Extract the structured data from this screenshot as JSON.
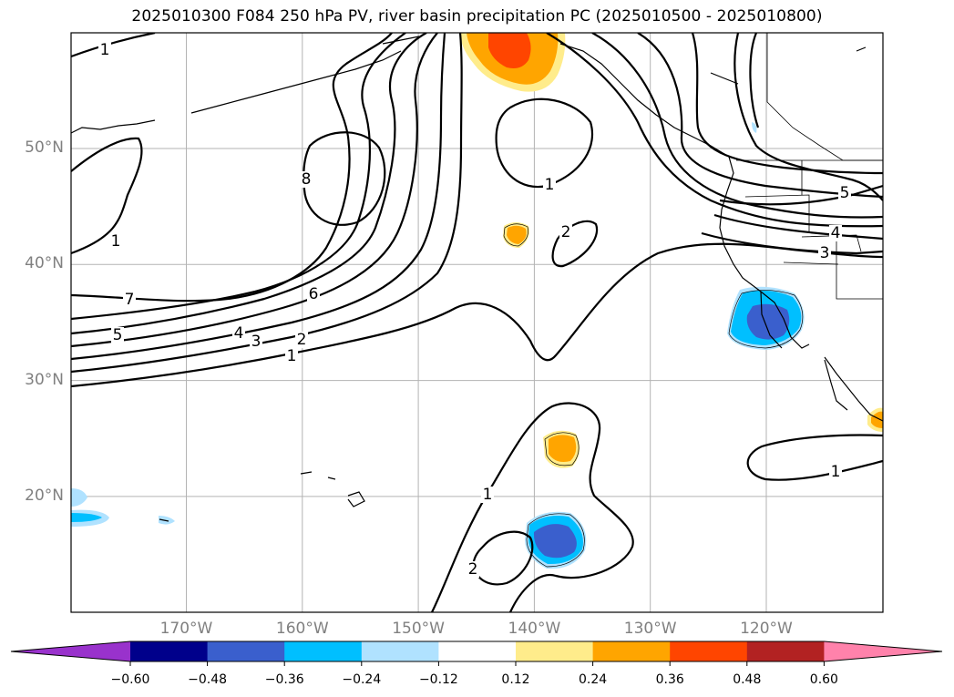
{
  "title": "2025010300 F084 250 hPa PV, river basin precipitation PC (2025010500 - 2025010800)",
  "lat_ticks": [
    {
      "label": "50°N",
      "value": 50
    },
    {
      "label": "40°N",
      "value": 40
    },
    {
      "label": "30°N",
      "value": 30
    },
    {
      "label": "20°N",
      "value": 20
    }
  ],
  "lon_ticks": [
    {
      "label": "170°W",
      "value": -170
    },
    {
      "label": "160°W",
      "value": -160
    },
    {
      "label": "150°W",
      "value": -150
    },
    {
      "label": "140°W",
      "value": -140
    },
    {
      "label": "130°W",
      "value": -130
    },
    {
      "label": "120°W",
      "value": -120
    }
  ],
  "colorbar": {
    "colors": [
      "#9932CC",
      "#00008B",
      "#3A5FCD",
      "#00BFFF",
      "#B0E2FF",
      "#FFFFFF",
      "#FFEC8B",
      "#FFA500",
      "#FF4500",
      "#B22222",
      "#FF82AB"
    ],
    "tick_labels": [
      "−0.60",
      "−0.48",
      "−0.36",
      "−0.24",
      "−0.12",
      "0.12",
      "0.24",
      "0.36",
      "0.48",
      "0.60"
    ]
  },
  "contour_labels": [
    "1",
    "8",
    "1",
    "2",
    "7",
    "6",
    "5",
    "4",
    "3",
    "2",
    "1",
    "5",
    "4",
    "3",
    "1",
    "2",
    "1",
    "1"
  ]
}
